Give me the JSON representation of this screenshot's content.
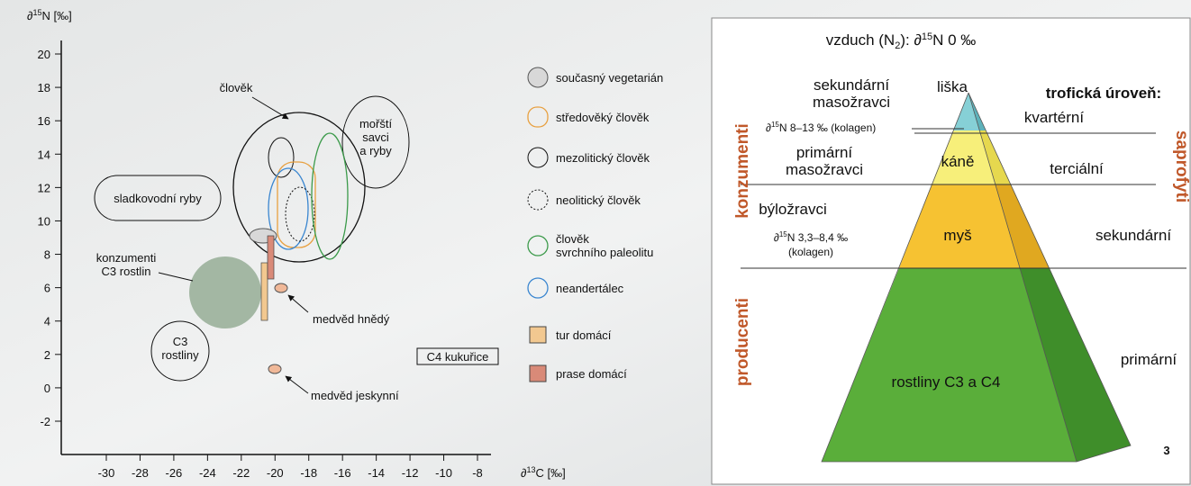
{
  "left_panel": {
    "y_axis_label": [
      "∂",
      "15",
      "N [‰]"
    ],
    "x_axis_label": [
      "∂",
      "13",
      "C [‰]"
    ],
    "xticks": [
      -30,
      -28,
      -26,
      -24,
      -22,
      -20,
      -18,
      -16,
      -14,
      -12,
      -10,
      -8
    ],
    "yticks": [
      20,
      18,
      16,
      14,
      12,
      10,
      8,
      6,
      4,
      2,
      0,
      -2
    ],
    "labels": {
      "freshwater_fish": "sladkovodní ryby",
      "human": "člověk",
      "marine": [
        "mořští",
        "savci",
        "a ryby"
      ],
      "c3_consumers": [
        "konzumenti",
        "C3 rostlin"
      ],
      "c3_plants": [
        "C3",
        "rostliny"
      ],
      "brown_bear": "medvěd hnědý",
      "cave_bear": "medvěd jeskynní",
      "c4_maize": "C4 kukuřice"
    },
    "legend": [
      [
        "současný vegetarián"
      ],
      [
        "středověký člověk"
      ],
      [
        "mezolitický člověk"
      ],
      [
        "neolitický člověk"
      ],
      [
        "člověk",
        "svrchního paleolitu"
      ],
      [
        "neandertálec"
      ],
      [
        "tur domácí"
      ],
      [
        "prase domácí"
      ]
    ]
  },
  "right_panel": {
    "air": [
      "vzduch (N",
      "2",
      "): ∂",
      "15",
      "N 0 ‰"
    ],
    "secondary_carnivores": [
      "sekundární",
      "masožravci"
    ],
    "fox": "liška",
    "trophic_level": "trofická úroveň:",
    "quaternary": "kvartérní",
    "d15n_carnivores": [
      "∂",
      "15",
      "N 8–13 ‰ (kolagen)"
    ],
    "primary_carnivores": [
      "primární",
      "masožravci"
    ],
    "buzzard": "káně",
    "tertiary": "terciální",
    "herbivores": "býložravci",
    "mouse": "myš",
    "secondary": "sekundární",
    "d15n_herbivores": [
      "∂",
      "15",
      "N 3,3–8,4 ‰",
      "(kolagen)"
    ],
    "plants": "rostliny C3 a C4",
    "primary": "primární",
    "consumers": "konzumenti",
    "producers": "producenti",
    "saprophytes": "saprofyti",
    "figure_number": "3"
  }
}
